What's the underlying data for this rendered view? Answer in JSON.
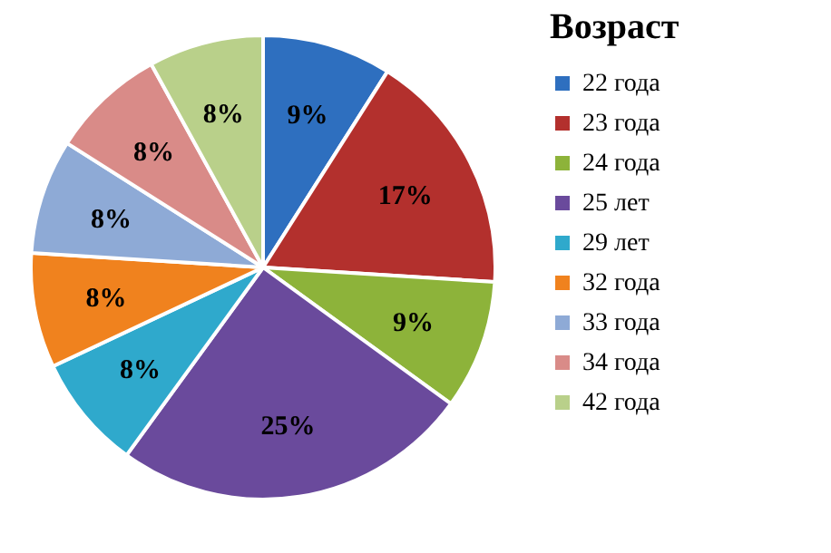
{
  "chart_data": {
    "type": "pie",
    "legend_title": "Возраст",
    "categories": [
      "22 года",
      "23 года",
      "24 года",
      "25 лет",
      "29 лет",
      "32 года",
      "33 года",
      "34 года",
      "42 года"
    ],
    "values": [
      9,
      17,
      9,
      25,
      8,
      8,
      8,
      8,
      8
    ],
    "colors": [
      "#2e6fbf",
      "#b3302d",
      "#8db33a",
      "#6a4a9c",
      "#2fa9cc",
      "#f0821e",
      "#8eaad6",
      "#d98b88",
      "#b9d08a"
    ],
    "value_labels": [
      "9%",
      "17%",
      "9%",
      "25%",
      "8%",
      "8%",
      "8%",
      "8%",
      "8%"
    ],
    "legend": "right"
  }
}
